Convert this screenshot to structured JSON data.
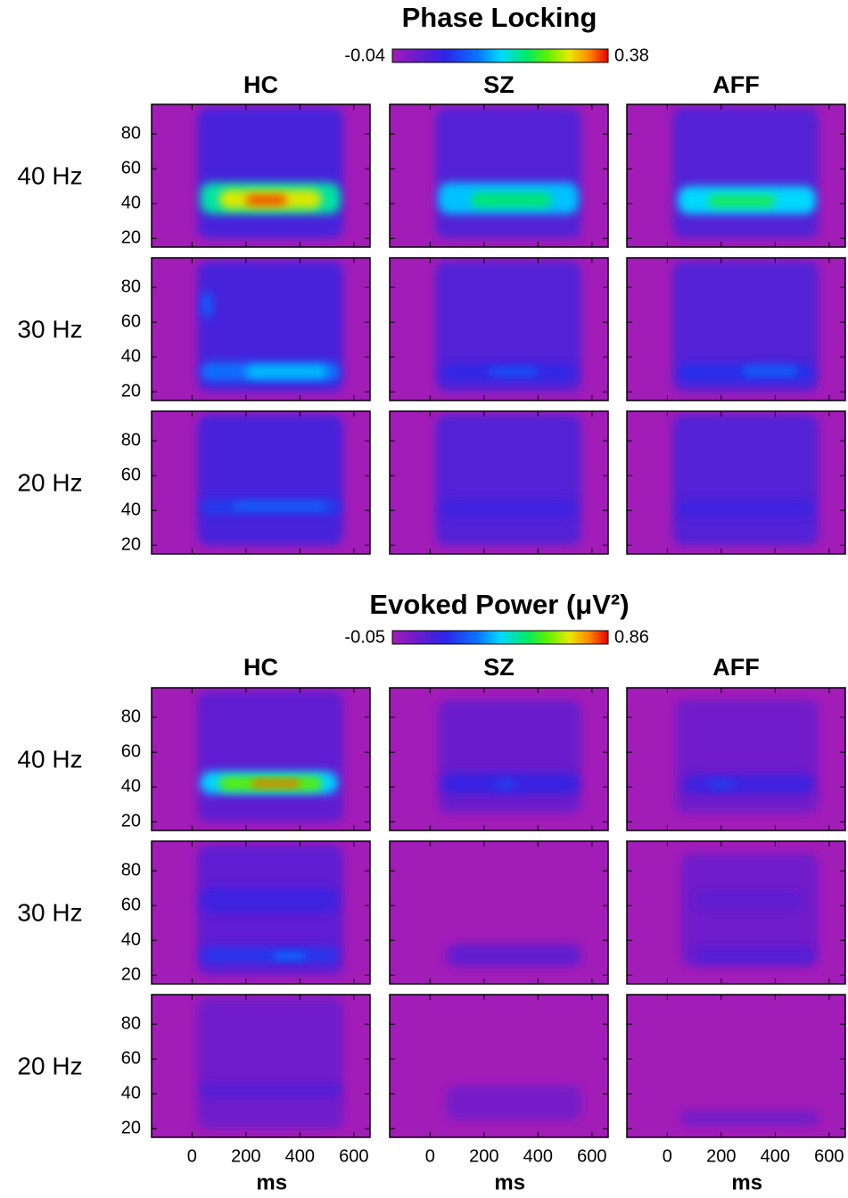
{
  "chart_data": {
    "type": "heatmap-grid",
    "axes": {
      "xlim": [
        -150,
        660
      ],
      "xticks": [
        0,
        200,
        400,
        600
      ],
      "xlabel": "ms",
      "ylim": [
        15,
        97
      ],
      "yticks": [
        20,
        40,
        60,
        80
      ]
    },
    "columns": [
      "HC",
      "SZ",
      "AFF"
    ],
    "rows": [
      "40 Hz",
      "30 Hz",
      "20 Hz"
    ],
    "sections": [
      {
        "title": "Phase Locking",
        "colorbar": {
          "min": -0.04,
          "max": 0.38
        },
        "panels": [
          [
            [
              {
                "hz": [
                  20,
                  95
                ],
                "ms": [
                  20,
                  560
                ],
                "value": 0.04
              },
              {
                "hz": [
                  34,
                  52
                ],
                "ms": [
                  30,
                  550
                ],
                "value": 0.2
              },
              {
                "hz": [
                  37,
                  48
                ],
                "ms": [
                  100,
                  480
                ],
                "value": 0.3
              },
              {
                "hz": [
                  39,
                  45
                ],
                "ms": [
                  200,
                  350
                ],
                "value": 0.36
              }
            ],
            [
              {
                "hz": [
                  20,
                  95
                ],
                "ms": [
                  20,
                  560
                ],
                "value": 0.03
              },
              {
                "hz": [
                  34,
                  52
                ],
                "ms": [
                  30,
                  550
                ],
                "value": 0.16
              },
              {
                "hz": [
                  38,
                  46
                ],
                "ms": [
                  150,
                  450
                ],
                "value": 0.22
              }
            ],
            [
              {
                "hz": [
                  20,
                  95
                ],
                "ms": [
                  20,
                  560
                ],
                "value": 0.03
              },
              {
                "hz": [
                  34,
                  50
                ],
                "ms": [
                  40,
                  550
                ],
                "value": 0.17
              },
              {
                "hz": [
                  38,
                  45
                ],
                "ms": [
                  150,
                  400
                ],
                "value": 0.23
              }
            ]
          ],
          [
            [
              {
                "hz": [
                  20,
                  95
                ],
                "ms": [
                  20,
                  560
                ],
                "value": 0.04
              },
              {
                "hz": [
                  26,
                  37
                ],
                "ms": [
                  30,
                  550
                ],
                "value": 0.12
              },
              {
                "hz": [
                  28,
                  35
                ],
                "ms": [
                  200,
                  500
                ],
                "value": 0.16
              },
              {
                "hz": [
                  62,
                  78
                ],
                "ms": [
                  30,
                  80
                ],
                "value": 0.1
              }
            ],
            [
              {
                "hz": [
                  20,
                  95
                ],
                "ms": [
                  20,
                  560
                ],
                "value": 0.03
              },
              {
                "hz": [
                  26,
                  36
                ],
                "ms": [
                  40,
                  540
                ],
                "value": 0.06
              },
              {
                "hz": [
                  29,
                  34
                ],
                "ms": [
                  220,
                  400
                ],
                "value": 0.1
              }
            ],
            [
              {
                "hz": [
                  20,
                  95
                ],
                "ms": [
                  20,
                  560
                ],
                "value": 0.03
              },
              {
                "hz": [
                  26,
                  36
                ],
                "ms": [
                  40,
                  540
                ],
                "value": 0.07
              },
              {
                "hz": [
                  29,
                  35
                ],
                "ms": [
                  280,
                  480
                ],
                "value": 0.11
              }
            ]
          ],
          [
            [
              {
                "hz": [
                  20,
                  95
                ],
                "ms": [
                  20,
                  560
                ],
                "value": 0.04
              },
              {
                "hz": [
                  38,
                  46
                ],
                "ms": [
                  30,
                  550
                ],
                "value": 0.08
              },
              {
                "hz": [
                  40,
                  45
                ],
                "ms": [
                  150,
                  500
                ],
                "value": 0.11
              }
            ],
            [
              {
                "hz": [
                  20,
                  95
                ],
                "ms": [
                  20,
                  560
                ],
                "value": 0.03
              },
              {
                "hz": [
                  36,
                  46
                ],
                "ms": [
                  40,
                  540
                ],
                "value": 0.05
              }
            ],
            [
              {
                "hz": [
                  20,
                  95
                ],
                "ms": [
                  20,
                  560
                ],
                "value": 0.03
              },
              {
                "hz": [
                  36,
                  46
                ],
                "ms": [
                  40,
                  540
                ],
                "value": 0.05
              }
            ]
          ]
        ]
      },
      {
        "title": "Evoked Power (μV²)",
        "colorbar": {
          "min": -0.05,
          "max": 0.86
        },
        "panels": [
          [
            [
              {
                "hz": [
                  20,
                  95
                ],
                "ms": [
                  20,
                  560
                ],
                "value": 0.08
              },
              {
                "hz": [
                  36,
                  49
                ],
                "ms": [
                  30,
                  540
                ],
                "value": 0.4
              },
              {
                "hz": [
                  38,
                  46
                ],
                "ms": [
                  100,
                  480
                ],
                "value": 0.6
              },
              {
                "hz": [
                  40,
                  44
                ],
                "ms": [
                  220,
                  400
                ],
                "value": 0.8
              }
            ],
            [
              {
                "hz": [
                  25,
                  90
                ],
                "ms": [
                  30,
                  560
                ],
                "value": 0.06
              },
              {
                "hz": [
                  36,
                  48
                ],
                "ms": [
                  40,
                  550
                ],
                "value": 0.15
              },
              {
                "hz": [
                  39,
                  44
                ],
                "ms": [
                  240,
                  320
                ],
                "value": 0.22
              }
            ],
            [
              {
                "hz": [
                  25,
                  90
                ],
                "ms": [
                  30,
                  560
                ],
                "value": 0.05
              },
              {
                "hz": [
                  36,
                  47
                ],
                "ms": [
                  60,
                  540
                ],
                "value": 0.14
              },
              {
                "hz": [
                  39,
                  44
                ],
                "ms": [
                  150,
                  250
                ],
                "value": 0.22
              }
            ]
          ],
          [
            [
              {
                "hz": [
                  20,
                  95
                ],
                "ms": [
                  20,
                  560
                ],
                "value": 0.08
              },
              {
                "hz": [
                  56,
                  70
                ],
                "ms": [
                  30,
                  540
                ],
                "value": 0.14
              },
              {
                "hz": [
                  27,
                  36
                ],
                "ms": [
                  30,
                  540
                ],
                "value": 0.2
              },
              {
                "hz": [
                  29,
                  33
                ],
                "ms": [
                  300,
                  420
                ],
                "value": 0.3
              }
            ],
            [
              {
                "hz": [
                  25,
                  38
                ],
                "ms": [
                  60,
                  560
                ],
                "value": 0.07
              }
            ],
            [
              {
                "hz": [
                  25,
                  90
                ],
                "ms": [
                  50,
                  560
                ],
                "value": 0.05
              },
              {
                "hz": [
                  27,
                  36
                ],
                "ms": [
                  100,
                  540
                ],
                "value": 0.1
              },
              {
                "hz": [
                  58,
                  68
                ],
                "ms": [
                  100,
                  500
                ],
                "value": 0.08
              }
            ]
          ],
          [
            [
              {
                "hz": [
                  20,
                  95
                ],
                "ms": [
                  20,
                  560
                ],
                "value": 0.05
              },
              {
                "hz": [
                  38,
                  46
                ],
                "ms": [
                  30,
                  550
                ],
                "value": 0.1
              }
            ],
            [
              {
                "hz": [
                  25,
                  45
                ],
                "ms": [
                  60,
                  560
                ],
                "value": 0.04
              }
            ],
            [
              {
                "hz": [
                  22,
                  30
                ],
                "ms": [
                  50,
                  560
                ],
                "value": 0.05
              }
            ]
          ]
        ]
      }
    ]
  }
}
